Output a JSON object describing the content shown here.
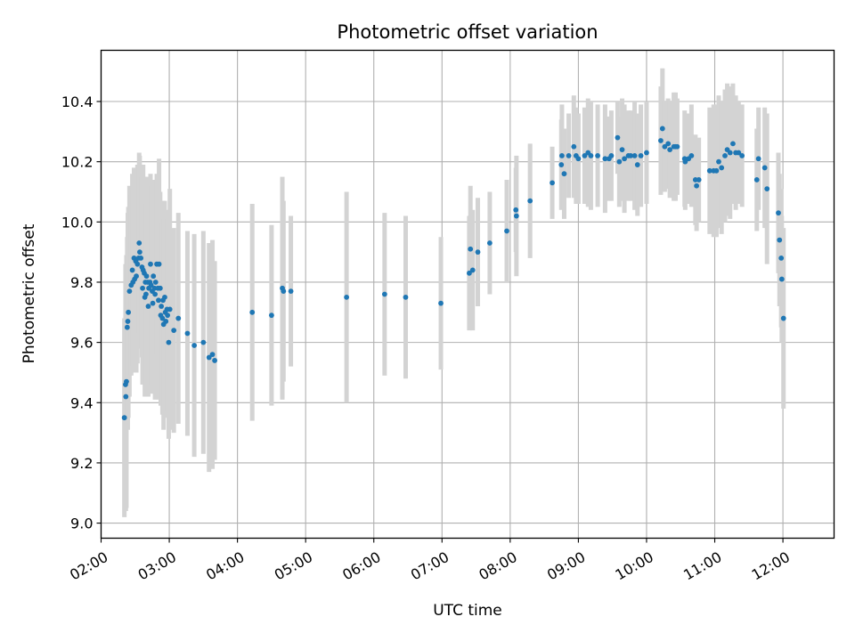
{
  "chart_data": {
    "type": "scatter",
    "title": "Photometric offset variation",
    "xlabel": "UTC time",
    "ylabel": "Photometric offset",
    "x_units": "minutes after 00:00 UTC",
    "xlim": [
      120,
      765
    ],
    "ylim": [
      8.95,
      10.57
    ],
    "x_ticks": [
      {
        "value": 120,
        "label": "02:00"
      },
      {
        "value": 180,
        "label": "03:00"
      },
      {
        "value": 240,
        "label": "04:00"
      },
      {
        "value": 300,
        "label": "05:00"
      },
      {
        "value": 360,
        "label": "06:00"
      },
      {
        "value": 420,
        "label": "07:00"
      },
      {
        "value": 480,
        "label": "08:00"
      },
      {
        "value": 540,
        "label": "09:00"
      },
      {
        "value": 600,
        "label": "10:00"
      },
      {
        "value": 660,
        "label": "11:00"
      },
      {
        "value": 720,
        "label": "12:00"
      }
    ],
    "y_ticks": [
      {
        "value": 9.0,
        "label": "9.0"
      },
      {
        "value": 9.2,
        "label": "9.2"
      },
      {
        "value": 9.4,
        "label": "9.4"
      },
      {
        "value": 9.6,
        "label": "9.6"
      },
      {
        "value": 9.8,
        "label": "9.8"
      },
      {
        "value": 10.0,
        "label": "10.0"
      },
      {
        "value": 10.2,
        "label": "10.2"
      },
      {
        "value": 10.4,
        "label": "10.4"
      }
    ],
    "grid": true,
    "colors": {
      "marker": "#1f77b4",
      "errorbar": "#d3d3d3",
      "grid": "#b0b0b0"
    },
    "series": [
      {
        "marker": "point",
        "points": [
          [
            140.5,
            9.35,
            0.33
          ],
          [
            141.5,
            9.46,
            0.4
          ],
          [
            141.8,
            9.42,
            0.38
          ],
          [
            142.3,
            9.47,
            0.42
          ],
          [
            143.0,
            9.65,
            0.3
          ],
          [
            143.5,
            9.67,
            0.36
          ],
          [
            144.0,
            9.7,
            0.35
          ],
          [
            145.0,
            9.77,
            0.35
          ],
          [
            146.5,
            9.79,
            0.3
          ],
          [
            147.5,
            9.84,
            0.32
          ],
          [
            148.0,
            9.8,
            0.3
          ],
          [
            149.0,
            9.88,
            0.3
          ],
          [
            149.5,
            9.81,
            0.3
          ],
          [
            150.5,
            9.87,
            0.3
          ],
          [
            151.0,
            9.82,
            0.32
          ],
          [
            152.0,
            9.86,
            0.33
          ],
          [
            153.0,
            9.88,
            0.3
          ],
          [
            153.5,
            9.93,
            0.3
          ],
          [
            154.0,
            9.9,
            0.32
          ],
          [
            155.0,
            9.88,
            0.3
          ],
          [
            156.0,
            9.85,
            0.3
          ],
          [
            156.5,
            9.78,
            0.32
          ],
          [
            157.0,
            9.84,
            0.35
          ],
          [
            158.0,
            9.83,
            0.32
          ],
          [
            158.5,
            9.75,
            0.33
          ],
          [
            159.0,
            9.8,
            0.35
          ],
          [
            159.5,
            9.76,
            0.3
          ],
          [
            160.0,
            9.82,
            0.32
          ],
          [
            161.0,
            9.8,
            0.35
          ],
          [
            161.5,
            9.72,
            0.3
          ],
          [
            162.0,
            9.78,
            0.33
          ],
          [
            163.0,
            9.8,
            0.33
          ],
          [
            163.5,
            9.86,
            0.3
          ],
          [
            164.0,
            9.79,
            0.33
          ],
          [
            165.0,
            9.77,
            0.34
          ],
          [
            165.5,
            9.73,
            0.3
          ],
          [
            166.0,
            9.82,
            0.32
          ],
          [
            167.0,
            9.78,
            0.33
          ],
          [
            167.5,
            9.76,
            0.35
          ],
          [
            168.0,
            9.8,
            0.31
          ],
          [
            169.0,
            9.86,
            0.3
          ],
          [
            170.0,
            9.78,
            0.32
          ],
          [
            170.5,
            9.74,
            0.33
          ],
          [
            171.0,
            9.86,
            0.35
          ],
          [
            172.0,
            9.78,
            0.32
          ],
          [
            172.5,
            9.69,
            0.3
          ],
          [
            173.0,
            9.72,
            0.33
          ],
          [
            174.0,
            9.68,
            0.32
          ],
          [
            174.5,
            9.74,
            0.33
          ],
          [
            175.0,
            9.66,
            0.35
          ],
          [
            176.0,
            9.75,
            0.32
          ],
          [
            176.5,
            9.7,
            0.33
          ],
          [
            177.0,
            9.67,
            0.32
          ],
          [
            178.0,
            9.71,
            0.33
          ],
          [
            178.5,
            9.69,
            0.32
          ],
          [
            179.5,
            9.6,
            0.32
          ],
          [
            180.5,
            9.71,
            0.4
          ],
          [
            184.0,
            9.64,
            0.34
          ],
          [
            188.0,
            9.68,
            0.35
          ],
          [
            196.0,
            9.63,
            0.34
          ],
          [
            202.0,
            9.59,
            0.37
          ],
          [
            210.0,
            9.6,
            0.37
          ],
          [
            215.0,
            9.55,
            0.38
          ],
          [
            218.0,
            9.56,
            0.38
          ],
          [
            220.0,
            9.54,
            0.33
          ],
          [
            253.0,
            9.7,
            0.36
          ],
          [
            270.0,
            9.69,
            0.3
          ],
          [
            279.5,
            9.78,
            0.37
          ],
          [
            280.5,
            9.77,
            0.3
          ],
          [
            287.0,
            9.77,
            0.25
          ],
          [
            336.0,
            9.75,
            0.35
          ],
          [
            369.5,
            9.76,
            0.27
          ],
          [
            388.0,
            9.75,
            0.27
          ],
          [
            419.0,
            9.73,
            0.22
          ],
          [
            444.0,
            9.83,
            0.19
          ],
          [
            445.0,
            9.91,
            0.21
          ],
          [
            447.0,
            9.84,
            0.2
          ],
          [
            451.5,
            9.9,
            0.18
          ],
          [
            462.0,
            9.93,
            0.17
          ],
          [
            477.0,
            9.97,
            0.17
          ],
          [
            485.0,
            10.04,
            0.14
          ],
          [
            485.5,
            10.02,
            0.2
          ],
          [
            497.5,
            10.07,
            0.19
          ],
          [
            517.0,
            10.13,
            0.12
          ],
          [
            525.0,
            10.19,
            0.15
          ],
          [
            525.5,
            10.22,
            0.17
          ],
          [
            527.5,
            10.16,
            0.15
          ],
          [
            531.5,
            10.22,
            0.14
          ],
          [
            536.0,
            10.25,
            0.17
          ],
          [
            538.0,
            10.22,
            0.16
          ],
          [
            540.0,
            10.21,
            0.15
          ],
          [
            545.5,
            10.22,
            0.16
          ],
          [
            548.5,
            10.23,
            0.18
          ],
          [
            551.0,
            10.22,
            0.18
          ],
          [
            557.0,
            10.22,
            0.17
          ],
          [
            563.5,
            10.21,
            0.18
          ],
          [
            567.0,
            10.21,
            0.14
          ],
          [
            569.0,
            10.22,
            0.15
          ],
          [
            574.5,
            10.28,
            0.12
          ],
          [
            576.0,
            10.2,
            0.15
          ],
          [
            578.5,
            10.24,
            0.17
          ],
          [
            580.5,
            10.21,
            0.18
          ],
          [
            584.0,
            10.22,
            0.15
          ],
          [
            586.0,
            10.22,
            0.15
          ],
          [
            589.5,
            10.22,
            0.18
          ],
          [
            592.0,
            10.19,
            0.17
          ],
          [
            595.0,
            10.22,
            0.17
          ],
          [
            600.0,
            10.23,
            0.17
          ],
          [
            612.5,
            10.27,
            0.18
          ],
          [
            614.0,
            10.31,
            0.2
          ],
          [
            616.0,
            10.25,
            0.15
          ],
          [
            619.0,
            10.26,
            0.15
          ],
          [
            620.5,
            10.24,
            0.16
          ],
          [
            624.0,
            10.25,
            0.18
          ],
          [
            625.5,
            10.25,
            0.18
          ],
          [
            627.0,
            10.25,
            0.16
          ],
          [
            633.5,
            10.21,
            0.16
          ],
          [
            634.0,
            10.2,
            0.16
          ],
          [
            637.0,
            10.21,
            0.15
          ],
          [
            639.5,
            10.22,
            0.17
          ],
          [
            643.0,
            10.14,
            0.15
          ],
          [
            644.0,
            10.12,
            0.15
          ],
          [
            646.0,
            10.14,
            0.14
          ],
          [
            655.5,
            10.17,
            0.21
          ],
          [
            659.0,
            10.17,
            0.22
          ],
          [
            661.5,
            10.17,
            0.22
          ],
          [
            663.5,
            10.2,
            0.22
          ],
          [
            666.0,
            10.18,
            0.22
          ],
          [
            669.0,
            10.22,
            0.22
          ],
          [
            671.0,
            10.24,
            0.22
          ],
          [
            673.5,
            10.23,
            0.22
          ],
          [
            676.0,
            10.26,
            0.2
          ],
          [
            678.5,
            10.23,
            0.19
          ],
          [
            681.0,
            10.23,
            0.17
          ],
          [
            684.0,
            10.22,
            0.17
          ],
          [
            697.0,
            10.14,
            0.17
          ],
          [
            698.5,
            10.21,
            0.17
          ],
          [
            704.0,
            10.18,
            0.2
          ],
          [
            706.0,
            10.11,
            0.25
          ],
          [
            716.0,
            10.03,
            0.2
          ],
          [
            717.0,
            9.94,
            0.22
          ],
          [
            718.5,
            9.88,
            0.23
          ],
          [
            719.0,
            9.81,
            0.21
          ],
          [
            720.5,
            9.68,
            0.3
          ]
        ]
      }
    ]
  }
}
